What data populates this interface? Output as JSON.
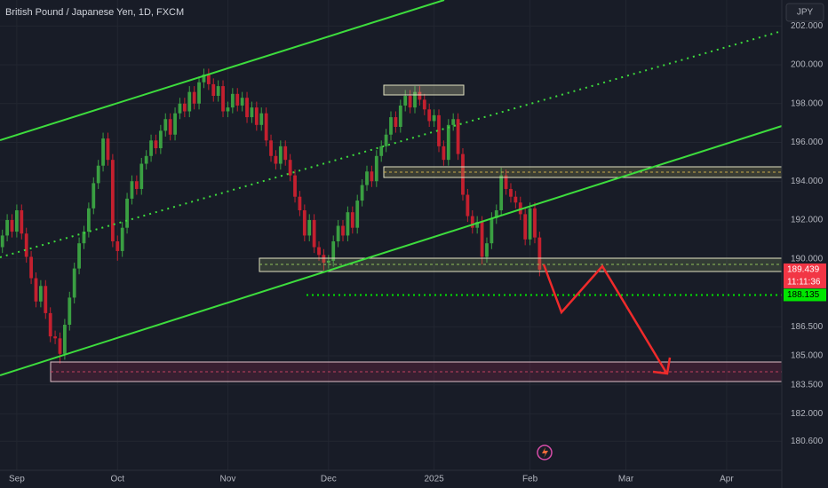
{
  "chart_data": {
    "type": "candlestick",
    "title": "British Pound / Japanese Yen, 1D, FXCM",
    "currency_button": "JPY",
    "up_color": "#3a9f42",
    "down_color": "#c4202f",
    "grid": true,
    "ylim": [
      179.1,
      203.34
    ],
    "yticks": [
      {
        "value": 202,
        "label": "202.000"
      },
      {
        "value": 200,
        "label": "200.000"
      },
      {
        "value": 198,
        "label": "198.000"
      },
      {
        "value": 196,
        "label": "196.000"
      },
      {
        "value": 194,
        "label": "194.000"
      },
      {
        "value": 192,
        "label": "192.000"
      },
      {
        "value": 190,
        "label": "190.000"
      },
      {
        "value": 186.5,
        "label": "186.500"
      },
      {
        "value": 185,
        "label": "185.000"
      },
      {
        "value": 183.5,
        "label": "183.500"
      },
      {
        "value": 182,
        "label": "182.000"
      },
      {
        "value": 180.6,
        "label": "180.600"
      }
    ],
    "price_labels": [
      {
        "value": 189.439,
        "countdown": "11:11:36",
        "color": "#f23645"
      },
      {
        "value": 188.135,
        "color": "#00e600"
      }
    ],
    "categories": [
      null,
      null,
      null,
      "Sep",
      null,
      null,
      null,
      null,
      null,
      null,
      null,
      null,
      null,
      null,
      null,
      null,
      null,
      null,
      null,
      null,
      null,
      null,
      null,
      null,
      "Oct",
      null,
      null,
      null,
      null,
      null,
      null,
      null,
      null,
      null,
      null,
      null,
      null,
      null,
      null,
      null,
      null,
      null,
      null,
      null,
      null,
      null,
      null,
      "Nov",
      null,
      null,
      null,
      null,
      null,
      null,
      null,
      null,
      null,
      null,
      null,
      null,
      null,
      null,
      null,
      null,
      null,
      null,
      null,
      null,
      "Dec",
      null,
      null,
      null,
      null,
      null,
      null,
      null,
      null,
      null,
      null,
      null,
      null,
      null,
      null,
      null,
      null,
      null,
      null,
      null,
      null,
      null,
      "2025",
      null,
      null,
      null,
      null,
      null,
      null,
      null,
      null,
      null,
      null,
      null,
      null,
      null,
      null,
      null,
      null,
      null,
      null,
      null,
      "Feb",
      null,
      null,
      null,
      null,
      null,
      null,
      null,
      null,
      null,
      null,
      null,
      null,
      null,
      null,
      null,
      null,
      null,
      null,
      null,
      "Mar",
      null,
      null,
      null,
      null,
      null,
      null,
      null,
      null,
      null,
      null,
      null,
      null,
      null,
      null,
      null,
      null,
      null,
      null,
      null,
      null,
      "Apr",
      null,
      null,
      null,
      null,
      null,
      null,
      null,
      null,
      null,
      null,
      null
    ],
    "candles": [
      [
        190.6,
        191.5,
        190.3,
        191.2
      ],
      [
        191.2,
        192.3,
        190.9,
        192.0
      ],
      [
        192.0,
        192.3,
        191.1,
        191.4
      ],
      [
        191.4,
        192.8,
        191.1,
        192.5
      ],
      [
        192.5,
        192.8,
        191.0,
        191.3
      ],
      [
        191.3,
        191.6,
        189.8,
        190.1
      ],
      [
        190.1,
        190.4,
        188.7,
        189.0
      ],
      [
        189.0,
        189.3,
        187.5,
        187.8
      ],
      [
        187.8,
        188.9,
        187.5,
        188.6
      ],
      [
        188.6,
        188.9,
        186.9,
        187.2
      ],
      [
        187.2,
        187.5,
        185.7,
        186.0
      ],
      [
        186.0,
        186.3,
        185.6,
        185.9
      ],
      [
        185.9,
        186.2,
        184.6,
        185.1
      ],
      [
        185.1,
        186.9,
        184.8,
        186.6
      ],
      [
        186.6,
        188.3,
        186.3,
        188.0
      ],
      [
        188.0,
        189.8,
        187.7,
        189.5
      ],
      [
        189.5,
        191.1,
        189.2,
        190.8
      ],
      [
        190.8,
        191.7,
        190.5,
        191.4
      ],
      [
        191.4,
        192.9,
        191.1,
        192.6
      ],
      [
        192.6,
        194.2,
        192.3,
        193.9
      ],
      [
        193.9,
        195.1,
        193.6,
        194.8
      ],
      [
        194.8,
        196.5,
        194.5,
        196.2
      ],
      [
        196.2,
        196.5,
        194.8,
        195.1
      ],
      [
        195.1,
        195.4,
        190.6,
        190.9
      ],
      [
        190.9,
        191.2,
        189.9,
        190.4
      ],
      [
        190.4,
        191.9,
        190.1,
        191.6
      ],
      [
        191.6,
        193.4,
        191.3,
        193.1
      ],
      [
        193.1,
        194.3,
        192.8,
        194.0
      ],
      [
        194.0,
        194.3,
        193.3,
        193.6
      ],
      [
        193.6,
        195.2,
        193.3,
        194.9
      ],
      [
        194.9,
        195.6,
        194.6,
        195.3
      ],
      [
        195.3,
        196.4,
        195.0,
        196.1
      ],
      [
        196.1,
        196.4,
        195.4,
        195.7
      ],
      [
        195.7,
        196.9,
        195.4,
        196.6
      ],
      [
        196.6,
        197.5,
        196.3,
        197.2
      ],
      [
        197.2,
        197.5,
        196.1,
        196.4
      ],
      [
        196.4,
        197.8,
        196.1,
        197.5
      ],
      [
        197.5,
        198.3,
        197.2,
        198.0
      ],
      [
        198.0,
        198.3,
        197.3,
        197.6
      ],
      [
        197.6,
        198.9,
        197.3,
        198.6
      ],
      [
        198.6,
        198.9,
        197.7,
        198.0
      ],
      [
        198.0,
        199.4,
        197.7,
        199.1
      ],
      [
        199.1,
        199.8,
        198.8,
        199.5
      ],
      [
        199.5,
        199.8,
        198.7,
        199.0
      ],
      [
        199.0,
        199.3,
        198.1,
        198.4
      ],
      [
        198.4,
        199.2,
        198.1,
        198.9
      ],
      [
        198.9,
        199.2,
        197.3,
        197.6
      ],
      [
        197.6,
        198.1,
        197.3,
        197.8
      ],
      [
        197.8,
        198.8,
        197.5,
        198.5
      ],
      [
        198.5,
        198.8,
        197.6,
        197.9
      ],
      [
        197.9,
        198.6,
        197.6,
        198.3
      ],
      [
        198.3,
        198.6,
        197.0,
        197.3
      ],
      [
        197.3,
        198.1,
        197.0,
        197.8
      ],
      [
        197.8,
        198.1,
        196.6,
        196.9
      ],
      [
        196.9,
        197.8,
        196.6,
        197.5
      ],
      [
        197.5,
        197.8,
        195.8,
        196.1
      ],
      [
        196.1,
        196.4,
        195.0,
        195.3
      ],
      [
        195.3,
        195.6,
        194.6,
        194.9
      ],
      [
        194.9,
        196.1,
        194.6,
        195.8
      ],
      [
        195.8,
        196.1,
        194.8,
        195.1
      ],
      [
        195.1,
        195.4,
        194.0,
        194.3
      ],
      [
        194.3,
        194.6,
        192.9,
        193.2
      ],
      [
        193.2,
        193.5,
        192.2,
        192.5
      ],
      [
        192.5,
        192.8,
        190.9,
        191.2
      ],
      [
        191.2,
        192.3,
        190.9,
        192.0
      ],
      [
        192.0,
        192.3,
        190.3,
        190.6
      ],
      [
        190.6,
        190.9,
        189.9,
        190.2
      ],
      [
        190.2,
        190.5,
        189.4,
        189.8
      ],
      [
        189.8,
        190.2,
        189.5,
        189.9
      ],
      [
        189.9,
        191.2,
        189.6,
        190.9
      ],
      [
        190.9,
        192.0,
        190.6,
        191.7
      ],
      [
        191.7,
        192.0,
        190.9,
        191.2
      ],
      [
        191.2,
        192.7,
        190.9,
        192.4
      ],
      [
        192.4,
        192.7,
        191.3,
        191.6
      ],
      [
        191.6,
        193.3,
        191.3,
        193.0
      ],
      [
        193.0,
        194.1,
        192.7,
        193.8
      ],
      [
        193.8,
        194.8,
        193.5,
        194.5
      ],
      [
        194.5,
        194.8,
        193.7,
        194.0
      ],
      [
        194.0,
        195.6,
        193.7,
        195.3
      ],
      [
        195.3,
        196.1,
        195.0,
        195.8
      ],
      [
        195.8,
        196.7,
        195.5,
        196.4
      ],
      [
        196.4,
        197.6,
        196.1,
        197.3
      ],
      [
        197.3,
        197.6,
        196.5,
        196.8
      ],
      [
        196.8,
        198.2,
        196.5,
        197.9
      ],
      [
        197.9,
        198.7,
        197.6,
        198.4
      ],
      [
        198.4,
        198.7,
        197.5,
        197.8
      ],
      [
        197.8,
        198.9,
        197.5,
        198.6
      ],
      [
        198.6,
        198.9,
        197.9,
        198.2
      ],
      [
        198.2,
        198.5,
        197.4,
        197.7
      ],
      [
        197.7,
        198.0,
        196.8,
        197.1
      ],
      [
        197.1,
        197.7,
        196.8,
        197.4
      ],
      [
        197.4,
        197.7,
        195.5,
        195.8
      ],
      [
        195.8,
        196.1,
        194.8,
        195.1
      ],
      [
        195.1,
        197.2,
        194.8,
        196.9
      ],
      [
        196.9,
        197.5,
        196.6,
        197.2
      ],
      [
        197.2,
        197.5,
        195.1,
        195.4
      ],
      [
        195.4,
        195.7,
        193.0,
        193.3
      ],
      [
        193.3,
        193.6,
        191.9,
        192.2
      ],
      [
        192.2,
        192.5,
        191.3,
        191.6
      ],
      [
        191.6,
        192.2,
        191.3,
        191.9
      ],
      [
        191.9,
        192.2,
        189.7,
        190.1
      ],
      [
        190.1,
        191.1,
        189.8,
        190.8
      ],
      [
        190.8,
        192.4,
        190.5,
        192.1
      ],
      [
        192.1,
        192.8,
        191.8,
        192.5
      ],
      [
        192.5,
        194.7,
        192.2,
        194.3
      ],
      [
        194.3,
        194.6,
        193.3,
        193.6
      ],
      [
        193.6,
        193.9,
        192.9,
        193.2
      ],
      [
        193.2,
        193.5,
        192.6,
        192.9
      ],
      [
        192.9,
        193.2,
        192.0,
        192.3
      ],
      [
        192.3,
        192.6,
        190.7,
        191.0
      ],
      [
        191.0,
        192.9,
        190.7,
        192.6
      ],
      [
        192.6,
        192.9,
        190.8,
        191.1
      ],
      [
        191.1,
        191.4,
        189.1,
        189.439
      ],
      null,
      null,
      null,
      null,
      null,
      null,
      null,
      null,
      null,
      null,
      null,
      null,
      null,
      null,
      null,
      null,
      null,
      null,
      null,
      null,
      null,
      null,
      null,
      null,
      null,
      null,
      null,
      null,
      null,
      null,
      null,
      null,
      null,
      null,
      null,
      null,
      null,
      null,
      null,
      null,
      null,
      null,
      null,
      null,
      null,
      null,
      null,
      null,
      null,
      null
    ]
  }
}
